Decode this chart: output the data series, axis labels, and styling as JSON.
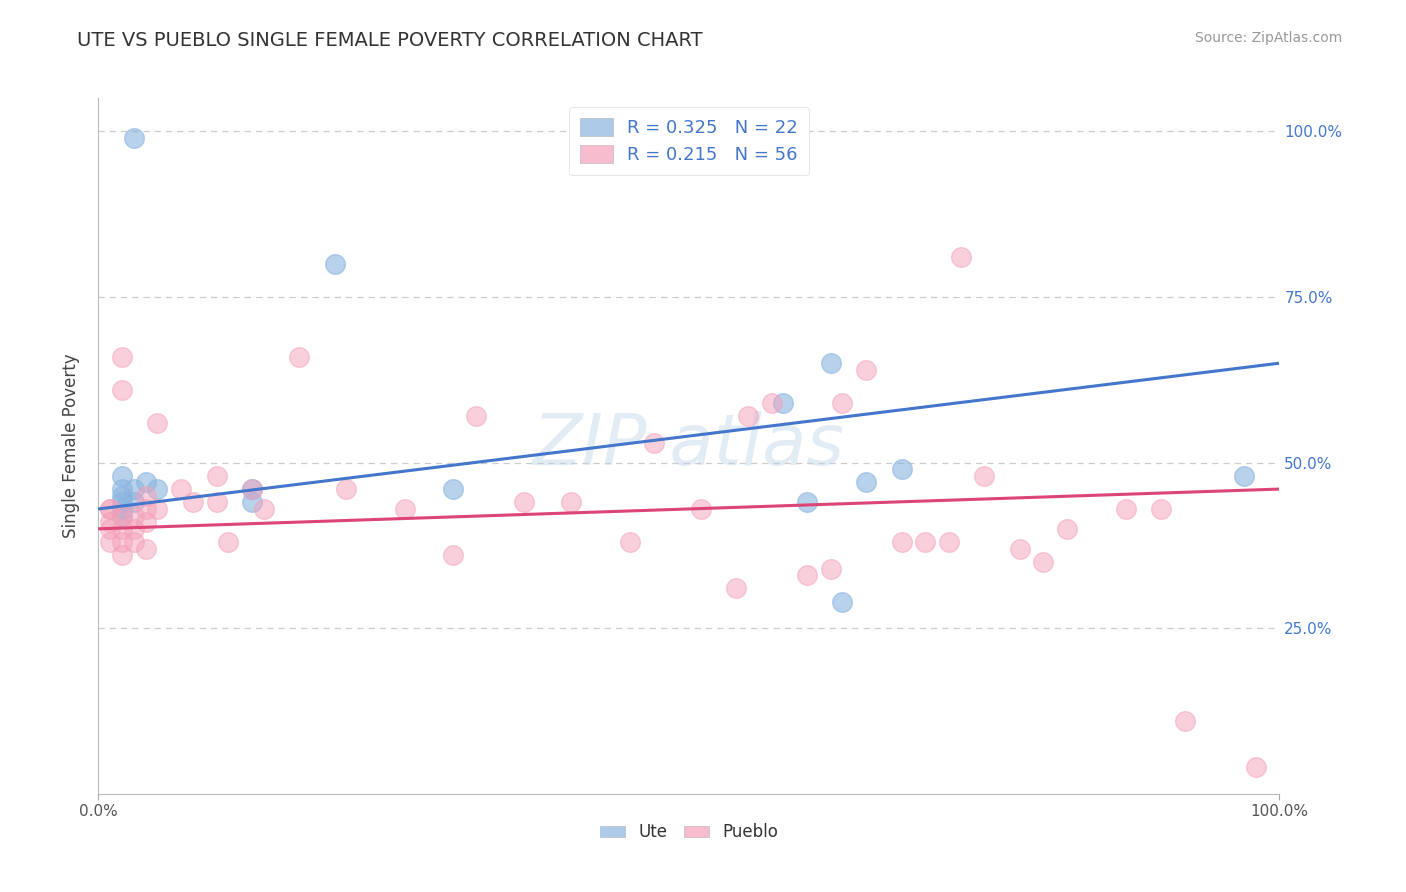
{
  "title": "UTE VS PUEBLO SINGLE FEMALE POVERTY CORRELATION CHART",
  "source": "Source: ZipAtlas.com",
  "ylabel_label": "Single Female Poverty",
  "xlim": [
    0.0,
    1.0
  ],
  "ylim": [
    0.0,
    1.05
  ],
  "background_color": "#ffffff",
  "grid_color": "#cccccc",
  "legend_blue_label": "R = 0.325   N = 22",
  "legend_pink_label": "R = 0.215   N = 56",
  "blue_color": "#8ab4e0",
  "pink_color": "#f4a0b8",
  "blue_line_color": "#4477cc",
  "pink_line_color": "#dd4477",
  "ute_x": [
    0.03,
    0.02,
    0.02,
    0.02,
    0.02,
    0.02,
    0.02,
    0.03,
    0.03,
    0.04,
    0.13,
    0.13,
    0.2,
    0.3,
    0.58,
    0.6,
    0.62,
    0.63,
    0.65,
    0.68,
    0.97,
    0.05
  ],
  "ute_y": [
    0.99,
    0.43,
    0.45,
    0.42,
    0.44,
    0.46,
    0.48,
    0.44,
    0.46,
    0.47,
    0.46,
    0.44,
    0.8,
    0.46,
    0.59,
    0.44,
    0.65,
    0.29,
    0.47,
    0.49,
    0.48,
    0.46
  ],
  "pueblo_x": [
    0.01,
    0.01,
    0.01,
    0.01,
    0.01,
    0.02,
    0.02,
    0.02,
    0.02,
    0.02,
    0.02,
    0.03,
    0.03,
    0.03,
    0.04,
    0.04,
    0.04,
    0.04,
    0.05,
    0.05,
    0.07,
    0.08,
    0.1,
    0.1,
    0.11,
    0.13,
    0.14,
    0.17,
    0.21,
    0.26,
    0.3,
    0.32,
    0.36,
    0.4,
    0.45,
    0.47,
    0.51,
    0.54,
    0.55,
    0.57,
    0.6,
    0.62,
    0.63,
    0.65,
    0.68,
    0.7,
    0.72,
    0.73,
    0.75,
    0.78,
    0.8,
    0.82,
    0.87,
    0.9,
    0.92,
    0.98
  ],
  "pueblo_y": [
    0.43,
    0.41,
    0.43,
    0.38,
    0.4,
    0.66,
    0.61,
    0.42,
    0.4,
    0.38,
    0.36,
    0.38,
    0.42,
    0.4,
    0.43,
    0.45,
    0.41,
    0.37,
    0.56,
    0.43,
    0.46,
    0.44,
    0.48,
    0.44,
    0.38,
    0.46,
    0.43,
    0.66,
    0.46,
    0.43,
    0.36,
    0.57,
    0.44,
    0.44,
    0.38,
    0.53,
    0.43,
    0.31,
    0.57,
    0.59,
    0.33,
    0.34,
    0.59,
    0.64,
    0.38,
    0.38,
    0.38,
    0.81,
    0.48,
    0.37,
    0.35,
    0.4,
    0.43,
    0.43,
    0.11,
    0.04
  ],
  "ute_trendline_x": [
    0.0,
    1.0
  ],
  "ute_trendline_y": [
    0.43,
    0.65
  ],
  "pueblo_trendline_x": [
    0.0,
    1.0
  ],
  "pueblo_trendline_y": [
    0.4,
    0.46
  ]
}
